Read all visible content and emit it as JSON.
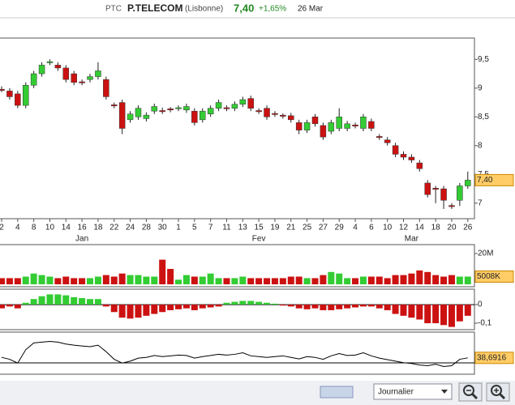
{
  "header": {
    "code": "PTC",
    "name": "P.TELECOM",
    "market": "(Lisbonne)",
    "price": "7,40",
    "change": "+1,65%",
    "date": "26 Mar"
  },
  "toolbar": {
    "period": "Journalier"
  },
  "chart_data": [
    {
      "type": "candlestick",
      "up_color": "#33cc33",
      "down_color": "#cc1111",
      "categories": [
        "2",
        null,
        "4",
        null,
        "8",
        null,
        "10",
        null,
        "14",
        null,
        "16",
        null,
        "18",
        null,
        "22",
        null,
        "24",
        null,
        "28",
        null,
        "30",
        null,
        "1",
        null,
        "5",
        null,
        "7",
        null,
        "11",
        null,
        "13",
        null,
        "15",
        null,
        "19",
        null,
        "21",
        null,
        "25",
        null,
        "27",
        null,
        "29",
        null,
        "4",
        null,
        "6",
        null,
        "10",
        null,
        "12",
        null,
        "14",
        null,
        "18",
        null,
        "20",
        null,
        "26"
      ],
      "months": [
        "Jan",
        "Fev",
        "Mar"
      ],
      "open": [
        8.98,
        8.95,
        8.9,
        8.7,
        9.05,
        9.25,
        9.44,
        9.4,
        9.35,
        9.25,
        9.11,
        9.15,
        9.2,
        9.15,
        8.71,
        8.75,
        8.45,
        8.5,
        8.47,
        8.6,
        8.61,
        8.64,
        8.64,
        8.62,
        8.6,
        8.45,
        8.55,
        8.65,
        8.66,
        8.65,
        8.72,
        8.82,
        8.61,
        8.65,
        8.56,
        8.53,
        8.52,
        8.4,
        8.27,
        8.5,
        8.35,
        8.25,
        8.3,
        8.3,
        8.36,
        8.3,
        8.42,
        8.16,
        8.1,
        8.0,
        7.85,
        7.8,
        7.7,
        7.35,
        7.26,
        7.25,
        6.96,
        7.05,
        7.3
      ],
      "high": [
        9.03,
        9.0,
        8.95,
        9.1,
        9.3,
        9.45,
        9.5,
        9.45,
        9.4,
        9.3,
        9.15,
        9.25,
        9.45,
        9.2,
        8.75,
        8.8,
        8.6,
        8.7,
        8.58,
        8.73,
        8.66,
        8.67,
        8.7,
        8.73,
        8.65,
        8.65,
        8.7,
        8.8,
        8.7,
        8.77,
        8.85,
        8.87,
        8.65,
        8.7,
        8.6,
        8.56,
        8.57,
        8.45,
        8.45,
        8.55,
        8.4,
        8.45,
        8.65,
        8.43,
        8.4,
        8.55,
        8.47,
        8.2,
        8.15,
        8.05,
        7.9,
        7.85,
        7.75,
        7.4,
        7.3,
        7.3,
        7.0,
        7.35,
        7.55
      ],
      "low": [
        8.93,
        8.8,
        8.65,
        8.65,
        9.0,
        9.2,
        9.4,
        9.3,
        9.1,
        9.05,
        9.05,
        9.1,
        9.15,
        8.8,
        8.65,
        8.2,
        8.4,
        8.45,
        8.42,
        8.55,
        8.55,
        8.58,
        8.6,
        8.57,
        8.35,
        8.4,
        8.5,
        8.6,
        8.6,
        8.6,
        8.67,
        8.6,
        8.55,
        8.45,
        8.5,
        8.47,
        8.4,
        8.2,
        8.22,
        8.33,
        8.1,
        8.2,
        8.25,
        8.25,
        8.3,
        8.25,
        8.25,
        8.1,
        8.0,
        7.8,
        7.75,
        7.7,
        7.55,
        7.1,
        7.0,
        6.9,
        6.9,
        6.95,
        7.25
      ],
      "close": [
        8.96,
        8.85,
        8.7,
        9.05,
        9.25,
        9.4,
        9.46,
        9.35,
        9.15,
        9.1,
        9.09,
        9.2,
        9.3,
        8.85,
        8.69,
        8.3,
        8.55,
        8.65,
        8.53,
        8.68,
        8.59,
        8.62,
        8.66,
        8.68,
        8.4,
        8.6,
        8.65,
        8.75,
        8.64,
        8.72,
        8.8,
        8.65,
        8.59,
        8.5,
        8.54,
        8.51,
        8.45,
        8.27,
        8.4,
        8.38,
        8.15,
        8.4,
        8.5,
        8.38,
        8.34,
        8.5,
        8.3,
        8.14,
        8.05,
        7.85,
        7.8,
        7.75,
        7.6,
        7.15,
        7.24,
        7.05,
        6.94,
        7.3,
        7.4
      ],
      "last_label": "7,40",
      "ylim": [
        6.73,
        9.87
      ],
      "yticks": [
        {
          "value": 7,
          "label": "7"
        },
        {
          "value": 7.5,
          "label": "7,5"
        },
        {
          "value": 8,
          "label": "8"
        },
        {
          "value": 8.5,
          "label": "8,5"
        },
        {
          "value": 9,
          "label": "9"
        },
        {
          "value": 9.5,
          "label": "9,5"
        }
      ]
    },
    {
      "type": "volume",
      "values": [
        4000000,
        4000000,
        4000000,
        5000000,
        7000000,
        6000000,
        5000000,
        4000000,
        5000000,
        4000000,
        4000000,
        4000000,
        5000000,
        6000000,
        5000000,
        7000000,
        6000000,
        6000000,
        5000000,
        5000000,
        16000000,
        10000000,
        3000000,
        6000000,
        5000000,
        5000000,
        7000000,
        4000000,
        4000000,
        4000000,
        5000000,
        4000000,
        4000000,
        4000000,
        4000000,
        4000000,
        5000000,
        5000000,
        4000000,
        4000000,
        6000000,
        8000000,
        7000000,
        4000000,
        4000000,
        5000000,
        5000000,
        5000000,
        4000000,
        6000000,
        6000000,
        7000000,
        9000000,
        8000000,
        6000000,
        5000000,
        6000000,
        5000000,
        5008000
      ],
      "last_label": "5008K",
      "ylim": [
        0,
        24200000
      ],
      "yticks": [
        {
          "value": 20000000,
          "label": "20M"
        }
      ]
    },
    {
      "type": "oscillator",
      "up_color": "#33cc33",
      "down_color": "#cc1111",
      "values": [
        -0.02,
        -0.01,
        -0.02,
        0.01,
        0.03,
        0.045,
        0.055,
        0.055,
        0.05,
        0.04,
        0.035,
        0.03,
        0.03,
        -0.01,
        -0.04,
        -0.07,
        -0.075,
        -0.07,
        -0.06,
        -0.05,
        -0.04,
        -0.03,
        -0.025,
        -0.02,
        -0.03,
        -0.02,
        -0.015,
        -0.01,
        0.01,
        0.015,
        0.02,
        0.02,
        0.015,
        0.01,
        0.005,
        -0.005,
        -0.01,
        -0.02,
        -0.025,
        -0.02,
        -0.03,
        -0.03,
        -0.025,
        -0.02,
        -0.015,
        -0.01,
        -0.01,
        -0.02,
        -0.03,
        -0.05,
        -0.06,
        -0.07,
        -0.08,
        -0.1,
        -0.1,
        -0.11,
        -0.12,
        -0.09,
        -0.06
      ],
      "ylim": [
        -0.126,
        0.07
      ],
      "yticks": [
        0,
        {
          "value": -0.1,
          "label": "-0,1"
        }
      ]
    },
    {
      "type": "line",
      "color": "#000000",
      "values": [
        40,
        35,
        25,
        60,
        78,
        80,
        82,
        80,
        75,
        72,
        70,
        68,
        72,
        55,
        35,
        25,
        30,
        38,
        40,
        45,
        42,
        44,
        46,
        45,
        38,
        42,
        45,
        48,
        46,
        48,
        52,
        44,
        42,
        40,
        42,
        44,
        40,
        36,
        42,
        40,
        35,
        44,
        50,
        45,
        46,
        52,
        44,
        38,
        34,
        30,
        26,
        24,
        20,
        18,
        22,
        16,
        18,
        35,
        38.6916
      ],
      "last_label": "38,6916",
      "ylim": [
        0,
        100
      ]
    }
  ]
}
